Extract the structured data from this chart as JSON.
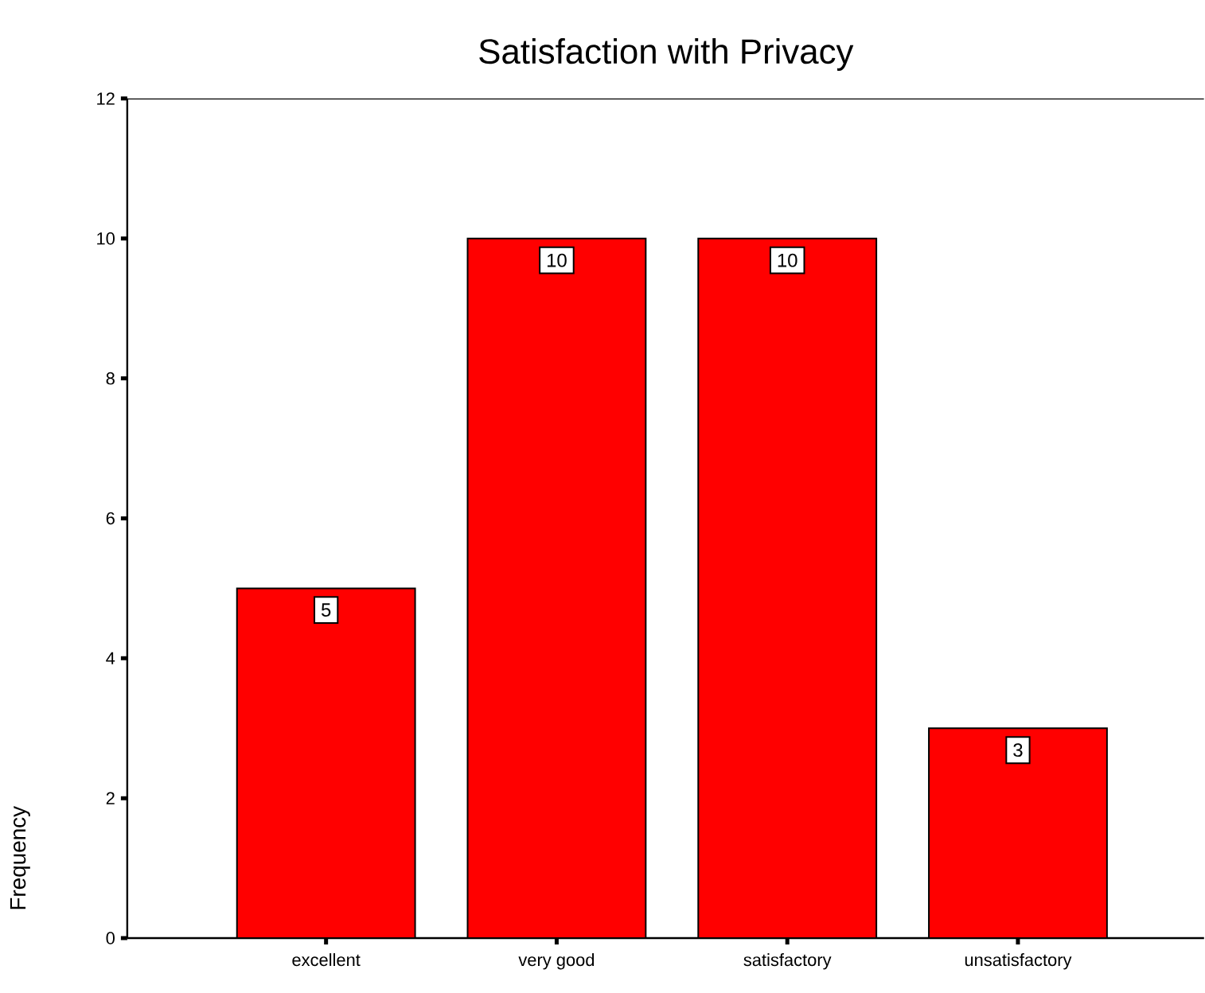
{
  "chart_data": {
    "type": "bar",
    "title": "Satisfaction with Privacy",
    "ylabel": "Frequency",
    "categories": [
      "excellent",
      "very good",
      "satisfactory",
      "unsatisfactory"
    ],
    "values": [
      5,
      10,
      10,
      3
    ],
    "color": "#ff0000",
    "ylim": [
      0,
      12
    ],
    "yticks": [
      0,
      2,
      4,
      6,
      8,
      10,
      12
    ],
    "data_labels": true
  }
}
